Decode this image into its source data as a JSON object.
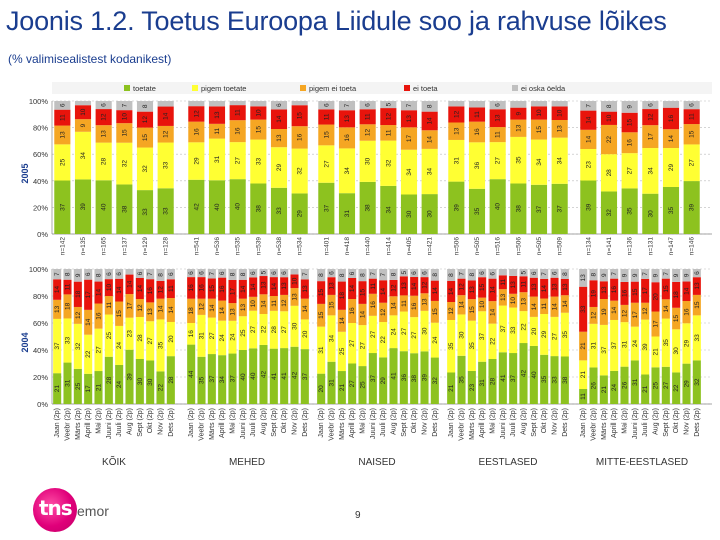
{
  "title": "Joonis 1.2. Toetus Euroopa Liidule soo ja rahvuse lõikes",
  "subtitle": "(% valimisealistest kodanikest)",
  "page_number": "9",
  "logo": {
    "brand": "tns",
    "suffix": "emor"
  },
  "chart_data": {
    "type": "bar",
    "stacked": true,
    "percent_stacked": true,
    "legend": [
      {
        "key": "toetate",
        "label": "toetate",
        "color": "#8dc21f"
      },
      {
        "key": "pigem_toetate",
        "label": "pigem toetate",
        "color": "#ffff33"
      },
      {
        "key": "pigem_ei_toeta",
        "label": "pigem ei toeta",
        "color": "#f5a623"
      },
      {
        "key": "ei_toeta",
        "label": "ei toeta",
        "color": "#e8140c"
      },
      {
        "key": "ei_oska_oelda",
        "label": "ei oska öelda",
        "color": "#c0c0c0"
      }
    ],
    "groups": [
      "KÕIK",
      "MEHED",
      "NAISED",
      "EESTLASED",
      "MITTE-EESTLASED"
    ],
    "yticks": [
      "0%",
      "20%",
      "40%",
      "60%",
      "80%",
      "100%"
    ],
    "rows": [
      {
        "label": "2005",
        "panels": [
          {
            "n": [
              "n=142",
              "n=135",
              "n=165",
              "n=137",
              "n=129",
              "n=128"
            ],
            "toetate": [
              37,
              39,
              40,
              38,
              33,
              33
            ],
            "pigem_toetate": [
              25,
              34,
              28,
              32,
              32,
              33
            ],
            "pigem_ei_toeta": [
              13,
              9,
              13,
              15,
              15,
              12
            ],
            "ei_toeta": [
              11,
              10,
              12,
              10,
              12,
              14
            ],
            "ei_oska_oelda": [
              6,
              3,
              6,
              7,
              8,
              4
            ]
          },
          {
            "n": [
              "n=541",
              "n=536",
              "n=535",
              "n=539",
              "n=538",
              "n=534"
            ],
            "toetate": [
              42,
              40,
              40,
              38,
              33,
              29
            ],
            "pigem_toetate": [
              29,
              31,
              27,
              33,
              29,
              32
            ],
            "pigem_ei_toeta": [
              16,
              11,
              16,
              15,
              13,
              16
            ],
            "ei_toeta": [
              12,
              13,
              11,
              10,
              14,
              15
            ],
            "ei_oska_oelda": [
              4,
              4,
              3,
              4,
              6,
              3
            ]
          },
          {
            "n": [
              "n=401",
              "n=418",
              "n=440",
              "n=414",
              "n=405",
              "n=421"
            ],
            "toetate": [
              37,
              31,
              38,
              34,
              30,
              30
            ],
            "pigem_toetate": [
              27,
              34,
              30,
              32,
              34,
              34
            ],
            "pigem_ei_toeta": [
              15,
              16,
              12,
              11,
              17,
              14
            ],
            "ei_toeta": [
              11,
              13,
              11,
              12,
              13,
              14
            ],
            "ei_oska_oelda": [
              6,
              7,
              6,
              5,
              7,
              8
            ]
          },
          {
            "n": [
              "n=506",
              "n=505",
              "n=516",
              "n=506",
              "n=505",
              "n=509"
            ],
            "toetate": [
              39,
              35,
              40,
              38,
              37,
              37
            ],
            "pigem_toetate": [
              31,
              36,
              27,
              35,
              34,
              34
            ],
            "pigem_ei_toeta": [
              13,
              16,
              11,
              13,
              15,
              13
            ],
            "ei_toeta": [
              12,
              11,
              13,
              9,
              10,
              10
            ],
            "ei_oska_oelda": [
              4,
              5,
              6,
              5,
              4,
              4
            ]
          },
          {
            "n": [
              "n=134",
              "n=141",
              "n=136",
              "n=131",
              "n=147",
              "n=146"
            ],
            "toetate": [
              39,
              32,
              35,
              30,
              35,
              39
            ],
            "pigem_toetate": [
              23,
              28,
              27,
              34,
              29,
              27
            ],
            "pigem_ei_toeta": [
              14,
              22,
              16,
              17,
              14,
              15
            ],
            "ei_toeta": [
              14,
              10,
              15,
              12,
              16,
              11
            ],
            "ei_oska_oelda": [
              7,
              8,
              9,
              6,
              5,
              6
            ]
          }
        ]
      },
      {
        "label": "2004",
        "panels": [
          {
            "n": [],
            "toetate": [
              21,
              31,
              25,
              17,
              21,
              28,
              24,
              39,
              30,
              30,
              22,
              28
            ],
            "pigem_toetate": [
              37,
              33,
              32,
              22,
              27,
              25,
              24,
              23,
              28,
              27,
              35,
              20
            ],
            "pigem_ei_toeta": [
              13,
              18,
              12,
              14,
              16,
              11,
              15,
              17,
              12,
              13,
              14,
              14
            ],
            "ei_toeta": [
              14,
              11,
              18,
              17,
              14,
              10,
              14,
              14,
              14,
              16,
              12,
              11
            ],
            "ei_oska_oelda": [
              7,
              8,
              9,
              6,
              8,
              6,
              6,
              4,
              6,
              7,
              8,
              6
            ]
          },
          {
            "n": [],
            "toetate": [
              44,
              35,
              37,
              34,
              37,
              40,
              40,
              42,
              41,
              41,
              42,
              37
            ],
            "pigem_toetate": [
              16,
              31,
              27,
              24,
              24,
              25,
              27,
              22,
              28,
              27,
              30,
              20
            ],
            "pigem_ei_toeta": [
              18,
              12,
              14,
              14,
              13,
              13,
              10,
              14,
              11,
              12,
              13,
              14
            ],
            "ei_toeta": [
              16,
              16,
              15,
              16,
              17,
              14,
              14,
              13,
              14,
              13,
              10,
              13
            ],
            "ei_oska_oelda": [
              6,
              6,
              7,
              6,
              8,
              8,
              6,
              5,
              6,
              6,
              4,
              7
            ]
          },
          {
            "n": [],
            "toetate": [
              20,
              31,
              21,
              27,
              25,
              37,
              29,
              41,
              36,
              38,
              39,
              32
            ],
            "pigem_toetate": [
              31,
              34,
              25,
              27,
              27,
              27,
              22,
              24,
              27,
              27,
              30,
              24
            ],
            "pigem_ei_toeta": [
              15,
              15,
              14,
              16,
              14,
              16,
              12,
              14,
              11,
              16,
              13,
              15
            ],
            "ei_toeta": [
              15,
              13,
              18,
              14,
              15,
              11,
              14,
              12,
              13,
              14,
              12,
              14
            ],
            "ei_oska_oelda": [
              8,
              6,
              8,
              6,
              8,
              7,
              7,
              8,
              5,
              6,
              6,
              8
            ]
          },
          {
            "n": [],
            "toetate": [
              21,
              35,
              23,
              31,
              28,
              41,
              37,
              42,
              40,
              35,
              33,
              38
            ],
            "pigem_toetate": [
              35,
              30,
              35,
              37,
              22,
              37,
              33,
              22,
              20,
              29,
              27,
              35
            ],
            "pigem_ei_toeta": [
              12,
              14,
              15,
              10,
              14,
              13,
              10,
              13,
              14,
              11,
              14,
              14
            ],
            "ei_toeta": [
              14,
              12,
              13,
              15,
              14,
              11,
              13,
              11,
              13,
              14,
              13,
              13
            ],
            "ei_oska_oelda": [
              8,
              7,
              8,
              6,
              6,
              5,
              5,
              5,
              6,
              7,
              6,
              8
            ]
          },
          {
            "n": [],
            "toetate": [
              11,
              26,
              21,
              24,
              26,
              31,
              21,
              25,
              27,
              22,
              29,
              32
            ],
            "pigem_toetate": [
              21,
              31,
              37,
              37,
              31,
              24,
              39,
              21,
              35,
              30,
              29,
              33
            ],
            "pigem_ei_toeta": [
              21,
              12,
              19,
              14,
              12,
              17,
              12,
              17,
              14,
              15,
              16,
              15
            ],
            "ei_toeta": [
              33,
              19,
              13,
              16,
              16,
              15,
              17,
              20,
              15,
              18,
              14,
              13
            ],
            "ei_oska_oelda": [
              13,
              8,
              9,
              7,
              9,
              9,
              7,
              9,
              7,
              9,
              9,
              6
            ]
          }
        ]
      }
    ],
    "xcategories_2004": [
      "Jaan (2p)",
      "Veebr (2p)",
      "Märts (2p)",
      "Aprill (2p)",
      "Mai (2p)",
      "Juuni (2p)",
      "Juuli (2p)",
      "Aug (2p)",
      "Sept (2p)",
      "Okt (2p)",
      "Nov (2p)",
      "Dets (2p)"
    ]
  }
}
